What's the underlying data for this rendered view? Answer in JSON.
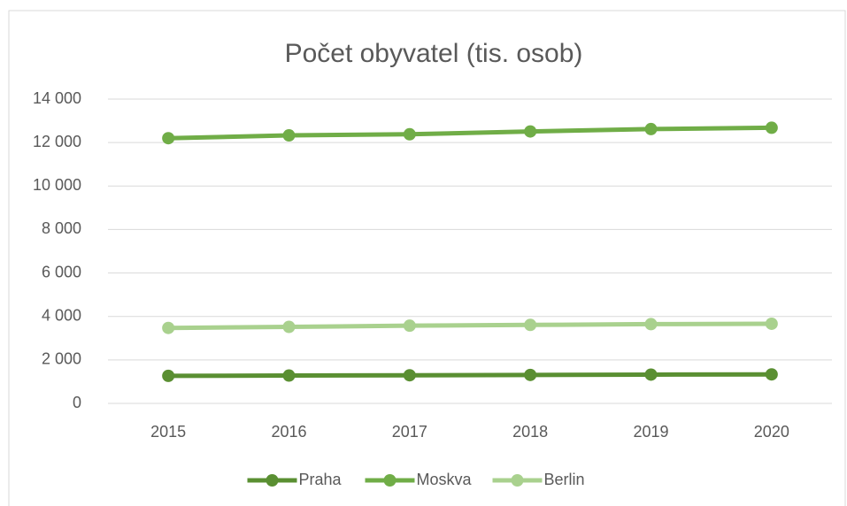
{
  "chart_data": {
    "type": "line",
    "title": "Počet obyvatel (tis. osob)",
    "categories": [
      "2015",
      "2016",
      "2017",
      "2018",
      "2019",
      "2020"
    ],
    "series": [
      {
        "name": "Praha",
        "color": "#5a8f32",
        "values": [
          1267,
          1280,
          1294,
          1309,
          1324,
          1335
        ]
      },
      {
        "name": "Moskva",
        "color": "#70ad47",
        "values": [
          12200,
          12330,
          12380,
          12510,
          12620,
          12680
        ]
      },
      {
        "name": "Berlin",
        "color": "#a9d18e",
        "values": [
          3470,
          3520,
          3575,
          3610,
          3645,
          3665
        ]
      }
    ],
    "ylim": [
      0,
      14000
    ],
    "yticks": [
      0,
      {
        "value": 2000,
        "label": "2 000"
      },
      {
        "value": 4000,
        "label": "4 000"
      },
      {
        "value": 6000,
        "label": "6 000"
      },
      {
        "value": 8000,
        "label": "8 000"
      },
      {
        "value": 10000,
        "label": "10 000"
      },
      {
        "value": 12000,
        "label": "12 000"
      },
      {
        "value": 14000,
        "label": "14 000"
      }
    ],
    "grid": true,
    "legend": "bottom"
  }
}
